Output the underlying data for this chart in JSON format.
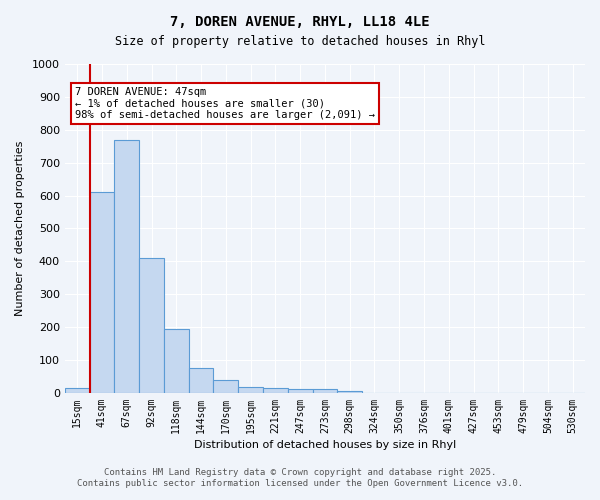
{
  "title1": "7, DOREN AVENUE, RHYL, LL18 4LE",
  "title2": "Size of property relative to detached houses in Rhyl",
  "xlabel": "Distribution of detached houses by size in Rhyl",
  "ylabel": "Number of detached properties",
  "categories": [
    "15sqm",
    "41sqm",
    "67sqm",
    "92sqm",
    "118sqm",
    "144sqm",
    "170sqm",
    "195sqm",
    "221sqm",
    "247sqm",
    "273sqm",
    "298sqm",
    "324sqm",
    "350sqm",
    "376sqm",
    "401sqm",
    "427sqm",
    "453sqm",
    "479sqm",
    "504sqm",
    "530sqm"
  ],
  "values": [
    15,
    610,
    770,
    410,
    193,
    75,
    38,
    18,
    15,
    13,
    12,
    7,
    0,
    0,
    0,
    0,
    0,
    0,
    0,
    0,
    0
  ],
  "bar_color": "#c5d8f0",
  "bar_edge_color": "#5b9bd5",
  "vline_x_index": 1,
  "vline_color": "#cc0000",
  "annotation_title": "7 DOREN AVENUE: 47sqm",
  "annotation_line1": "← 1% of detached houses are smaller (30)",
  "annotation_line2": "98% of semi-detached houses are larger (2,091) →",
  "annotation_box_color": "#cc0000",
  "ylim": [
    0,
    1000
  ],
  "yticks": [
    0,
    100,
    200,
    300,
    400,
    500,
    600,
    700,
    800,
    900,
    1000
  ],
  "footer1": "Contains HM Land Registry data © Crown copyright and database right 2025.",
  "footer2": "Contains public sector information licensed under the Open Government Licence v3.0.",
  "bg_color": "#f0f4fa",
  "plot_bg_color": "#f0f4fa"
}
